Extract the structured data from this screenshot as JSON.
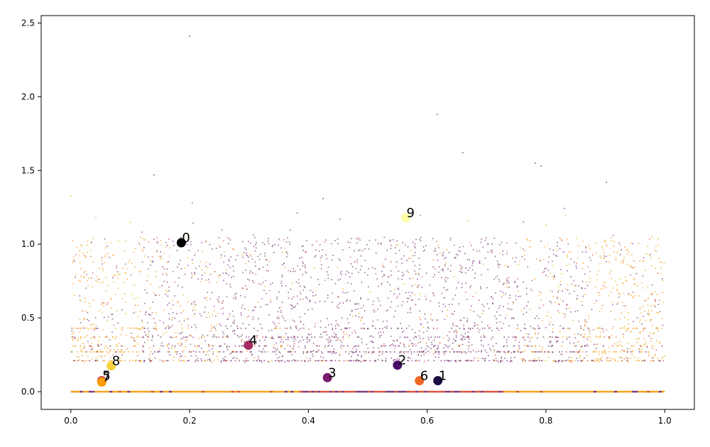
{
  "chart_data": {
    "type": "scatter",
    "title": "",
    "xlabel": "",
    "ylabel": "",
    "xlim": [
      -0.05,
      1.05
    ],
    "ylim": [
      -0.12,
      2.55
    ],
    "grid": false,
    "legend": "none",
    "x_ticks": [
      0.0,
      0.2,
      0.4,
      0.6,
      0.8,
      1.0
    ],
    "x_tick_labels": [
      "0.0",
      "0.2",
      "0.4",
      "0.6",
      "0.8",
      "1.0"
    ],
    "y_ticks": [
      0.0,
      0.5,
      1.0,
      1.5,
      2.0,
      2.5
    ],
    "y_tick_labels": [
      "0.0",
      "0.5",
      "1.0",
      "1.5",
      "2.0",
      "2.5"
    ],
    "colormap": "inferno",
    "colors": {
      "orange": "#f6a21a",
      "purple": "#7b3a7a",
      "red": "#d9533a",
      "axis": "#000000"
    },
    "labeled_points": [
      {
        "label": "0",
        "x": 0.186,
        "y": 1.01,
        "color": "#000004"
      },
      {
        "label": "1",
        "x": 0.618,
        "y": 0.075,
        "color": "#1b0c41"
      },
      {
        "label": "2",
        "x": 0.55,
        "y": 0.18,
        "color": "#4a0c6b"
      },
      {
        "label": "3",
        "x": 0.432,
        "y": 0.095,
        "color": "#781c6d"
      },
      {
        "label": "4",
        "x": 0.299,
        "y": 0.315,
        "color": "#a52c60"
      },
      {
        "label": "5",
        "x": 0.052,
        "y": 0.075,
        "color": "#cf4446"
      },
      {
        "label": "6",
        "x": 0.587,
        "y": 0.075,
        "color": "#ed6925"
      },
      {
        "label": "7",
        "x": 0.052,
        "y": 0.065,
        "color": "#fb9b06"
      },
      {
        "label": "8",
        "x": 0.068,
        "y": 0.175,
        "color": "#f7d13d"
      },
      {
        "label": "9",
        "x": 0.564,
        "y": 1.18,
        "color": "#fcffa4"
      }
    ],
    "band_levels_y": [
      0.0,
      0.21,
      0.27,
      0.31,
      0.37,
      0.43
    ],
    "outliers": [
      {
        "x": 0.2,
        "y": 2.41
      },
      {
        "x": 0.617,
        "y": 1.88
      },
      {
        "x": 0.782,
        "y": 1.55
      },
      {
        "x": 0.792,
        "y": 1.53
      },
      {
        "x": 0.14,
        "y": 1.47
      },
      {
        "x": 0.902,
        "y": 1.42
      },
      {
        "x": 0.66,
        "y": 1.62
      },
      {
        "x": 0.425,
        "y": 1.31
      }
    ],
    "background_points": 2500
  }
}
